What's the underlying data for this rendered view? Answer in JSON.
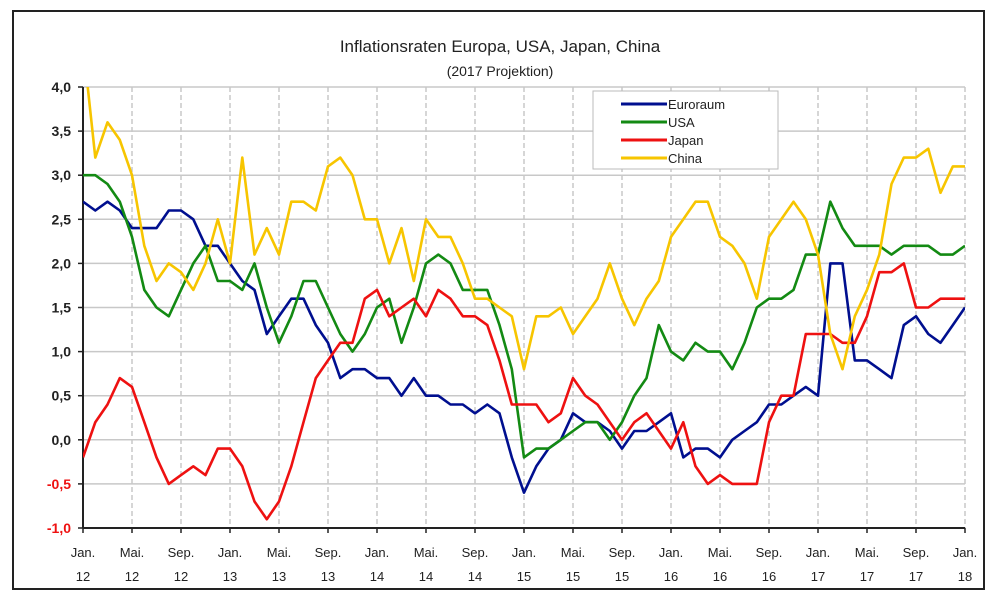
{
  "chart_data": {
    "type": "line",
    "title": "Inflationsraten Europa, USA, Japan, China",
    "subtitle": "(2017 Projektion)",
    "xlabel": "",
    "ylabel": "",
    "ylim": [
      -1.0,
      4.0
    ],
    "yticks": [
      4.0,
      3.5,
      3.0,
      2.5,
      2.0,
      1.5,
      1.0,
      0.5,
      0.0,
      -0.5,
      -1.0
    ],
    "ytick_labels": [
      "4,0",
      "3,5",
      "3,0",
      "2,5",
      "2,0",
      "1,5",
      "1,0",
      "0,5",
      "0,0",
      "-0,5",
      "-1,0"
    ],
    "negative_tick_color": "#ee1111",
    "grid": true,
    "legend_position": "top-right",
    "x_start": "Jan. 2012",
    "x_end": "Jan. 2018",
    "x_frequency": "monthly",
    "xtick_labels": [
      {
        "month": "Jan.",
        "year": "12"
      },
      {
        "month": "Mai.",
        "year": "12"
      },
      {
        "month": "Sep.",
        "year": "12"
      },
      {
        "month": "Jan.",
        "year": "13"
      },
      {
        "month": "Mai.",
        "year": "13"
      },
      {
        "month": "Sep.",
        "year": "13"
      },
      {
        "month": "Jan.",
        "year": "14"
      },
      {
        "month": "Mai.",
        "year": "14"
      },
      {
        "month": "Sep.",
        "year": "14"
      },
      {
        "month": "Jan.",
        "year": "15"
      },
      {
        "month": "Mai.",
        "year": "15"
      },
      {
        "month": "Sep.",
        "year": "15"
      },
      {
        "month": "Jan.",
        "year": "16"
      },
      {
        "month": "Mai.",
        "year": "16"
      },
      {
        "month": "Sep.",
        "year": "16"
      },
      {
        "month": "Jan.",
        "year": "17"
      },
      {
        "month": "Mai.",
        "year": "17"
      },
      {
        "month": "Sep.",
        "year": "17"
      },
      {
        "month": "Jan.",
        "year": "18"
      }
    ],
    "series": [
      {
        "name": "Euroraum",
        "color": "#000f8f",
        "values": [
          2.7,
          2.6,
          2.7,
          2.6,
          2.4,
          2.4,
          2.4,
          2.6,
          2.6,
          2.5,
          2.2,
          2.2,
          2.0,
          1.8,
          1.7,
          1.2,
          1.4,
          1.6,
          1.6,
          1.3,
          1.1,
          0.7,
          0.8,
          0.8,
          0.7,
          0.7,
          0.5,
          0.7,
          0.5,
          0.5,
          0.4,
          0.4,
          0.3,
          0.4,
          0.3,
          -0.2,
          -0.6,
          -0.3,
          -0.1,
          0.0,
          0.3,
          0.2,
          0.2,
          0.1,
          -0.1,
          0.1,
          0.1,
          0.2,
          0.3,
          -0.2,
          -0.1,
          -0.1,
          -0.2,
          0.0,
          0.1,
          0.2,
          0.4,
          0.4,
          0.5,
          0.6,
          0.5,
          2.0,
          2.0,
          0.9,
          0.9,
          0.8,
          0.7,
          1.3,
          1.4,
          1.2,
          1.1,
          1.3,
          1.5
        ]
      },
      {
        "name": "USA",
        "color": "#138a13",
        "values": [
          3.0,
          3.0,
          2.9,
          2.7,
          2.3,
          1.7,
          1.5,
          1.4,
          1.7,
          2.0,
          2.2,
          1.8,
          1.8,
          1.7,
          2.0,
          1.5,
          1.1,
          1.4,
          1.8,
          1.8,
          1.5,
          1.2,
          1.0,
          1.2,
          1.5,
          1.6,
          1.1,
          1.5,
          2.0,
          2.1,
          2.0,
          1.7,
          1.7,
          1.7,
          1.3,
          0.8,
          -0.2,
          -0.1,
          -0.1,
          0.0,
          0.1,
          0.2,
          0.2,
          0.0,
          0.2,
          0.5,
          0.7,
          1.3,
          1.0,
          0.9,
          1.1,
          1.0,
          1.0,
          0.8,
          1.1,
          1.5,
          1.6,
          1.6,
          1.7,
          2.1,
          2.1,
          2.7,
          2.4,
          2.2,
          2.2,
          2.2,
          2.1,
          2.2,
          2.2,
          2.2,
          2.1,
          2.1,
          2.2
        ]
      },
      {
        "name": "Japan",
        "color": "#ee1111",
        "values": [
          -0.2,
          0.2,
          0.4,
          0.7,
          0.6,
          0.2,
          -0.2,
          -0.5,
          -0.4,
          -0.3,
          -0.4,
          -0.1,
          -0.1,
          -0.3,
          -0.7,
          -0.9,
          -0.7,
          -0.3,
          0.2,
          0.7,
          0.9,
          1.1,
          1.1,
          1.6,
          1.7,
          1.4,
          1.5,
          1.6,
          1.4,
          1.7,
          1.6,
          1.4,
          1.4,
          1.3,
          0.9,
          0.4,
          0.4,
          0.4,
          0.2,
          0.3,
          0.7,
          0.5,
          0.4,
          0.2,
          0.0,
          0.2,
          0.3,
          0.1,
          -0.1,
          0.2,
          -0.3,
          -0.5,
          -0.4,
          -0.5,
          -0.5,
          -0.5,
          0.2,
          0.5,
          0.5,
          1.2,
          1.2,
          1.2,
          1.1,
          1.1,
          1.4,
          1.9,
          1.9,
          2.0,
          1.5,
          1.5,
          1.6,
          1.6,
          1.6
        ]
      },
      {
        "name": "China",
        "color": "#f7c500",
        "values": [
          4.5,
          3.2,
          3.6,
          3.4,
          3.0,
          2.2,
          1.8,
          2.0,
          1.9,
          1.7,
          2.0,
          2.5,
          2.0,
          3.2,
          2.1,
          2.4,
          2.1,
          2.7,
          2.7,
          2.6,
          3.1,
          3.2,
          3.0,
          2.5,
          2.5,
          2.0,
          2.4,
          1.8,
          2.5,
          2.3,
          2.3,
          2.0,
          1.6,
          1.6,
          1.5,
          1.4,
          0.8,
          1.4,
          1.4,
          1.5,
          1.2,
          1.4,
          1.6,
          2.0,
          1.6,
          1.3,
          1.6,
          1.8,
          2.3,
          2.5,
          2.7,
          2.7,
          2.3,
          2.2,
          2.0,
          1.6,
          2.3,
          2.5,
          2.7,
          2.5,
          2.1,
          1.2,
          0.8,
          1.4,
          1.7,
          2.1,
          2.9,
          3.2,
          3.2,
          3.3,
          2.8,
          3.1,
          3.1
        ]
      }
    ]
  }
}
